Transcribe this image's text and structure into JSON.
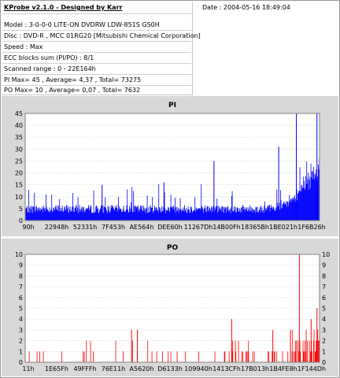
{
  "header": {
    "title": "KProbe v2.1.0 - Designed by Karr",
    "date": "Date : 2004-05-16 18:49:04",
    "lines": [
      "Model : 3-0-0-0 LITE-ON DVDRW LDW-851S   GS0H",
      "Disc : DVD-R , MCC 01RG20  [Mitsubishi Chemical Corporation]",
      "Speed : Max",
      "ECC blocks sum (PI/PO) : 8/1",
      "Scanned range : 0 - 22E164h",
      "PI Max= 45 , Average= 4,37 , Total= 73275",
      "PO Max= 10 , Average= 0,07 , Total= 7632"
    ]
  },
  "colors": {
    "panel_bg": "#d8d8d8",
    "pi_bar": "#0000ff",
    "po_bar": "#ff0000",
    "axis_text": "#000000"
  },
  "chart_data": [
    {
      "type": "bar",
      "title": "PI",
      "ylim": [
        0,
        45
      ],
      "yticks": [
        0,
        5,
        10,
        15,
        20,
        25,
        30,
        35,
        40,
        45
      ],
      "xticks": [
        "90h",
        "22948h",
        "52331h",
        "7F453h",
        "AE564h",
        "DEE60h",
        "11267Dh",
        "14B00Fh",
        "18365Bh",
        "1BE021h",
        "1F6B26h"
      ],
      "summary": {
        "max": 45,
        "average": 4.37,
        "total": 73275
      },
      "spikes": [
        {
          "pos": 0.26,
          "value": 15
        },
        {
          "pos": 0.47,
          "value": 16
        },
        {
          "pos": 0.64,
          "value": 25
        },
        {
          "pos": 0.86,
          "value": 31
        },
        {
          "pos": 0.92,
          "value": 45
        },
        {
          "pos": 0.99,
          "value": 45
        }
      ]
    },
    {
      "type": "bar",
      "title": "PO",
      "ylim": [
        0,
        10
      ],
      "yticks": [
        0,
        1,
        2,
        3,
        4,
        5,
        6,
        7,
        8,
        9,
        10
      ],
      "xticks": [
        "11h",
        "1E65Fh",
        "49FFFh",
        "76E11h",
        "A5620h",
        "D6133h",
        "109940h",
        "1413CFh",
        "17B013h",
        "1B4FE8h",
        "1F144Dh"
      ],
      "summary": {
        "max": 10,
        "average": 0.07,
        "total": 7632
      },
      "spikes": [
        {
          "pos": 0.36,
          "value": 3
        },
        {
          "pos": 0.38,
          "value": 3
        },
        {
          "pos": 0.7,
          "value": 4
        },
        {
          "pos": 0.84,
          "value": 3
        },
        {
          "pos": 0.9,
          "value": 3
        },
        {
          "pos": 0.93,
          "value": 10
        },
        {
          "pos": 0.97,
          "value": 4
        },
        {
          "pos": 0.99,
          "value": 5
        }
      ]
    }
  ]
}
